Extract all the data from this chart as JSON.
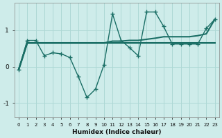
{
  "xlabel": "Humidex (Indice chaleur)",
  "background_color": "#ceecea",
  "grid_color": "#aed8d5",
  "line_color": "#1a6e65",
  "x": [
    0,
    1,
    2,
    3,
    4,
    5,
    6,
    7,
    8,
    9,
    10,
    11,
    12,
    13,
    14,
    15,
    16,
    17,
    18,
    19,
    20,
    21,
    22,
    23
  ],
  "line_jagged": [
    -0.08,
    0.72,
    0.72,
    0.3,
    0.38,
    0.35,
    0.25,
    -0.28,
    -0.85,
    -0.62,
    0.05,
    1.45,
    0.72,
    0.52,
    0.3,
    1.5,
    1.5,
    1.1,
    0.62,
    0.62,
    0.62,
    0.62,
    1.05,
    1.3
  ],
  "line_flat": [
    -0.08,
    0.65,
    0.65,
    0.65,
    0.65,
    0.65,
    0.65,
    0.65,
    0.65,
    0.65,
    0.65,
    0.65,
    0.65,
    0.65,
    0.65,
    0.65,
    0.65,
    0.65,
    0.65,
    0.65,
    0.65,
    0.65,
    0.65,
    0.65
  ],
  "line_diag": [
    -0.08,
    0.65,
    0.65,
    0.65,
    0.65,
    0.65,
    0.65,
    0.65,
    0.65,
    0.65,
    0.65,
    0.7,
    0.7,
    0.72,
    0.72,
    0.75,
    0.78,
    0.82,
    0.82,
    0.82,
    0.82,
    0.85,
    0.9,
    1.3
  ],
  "ylim": [
    -1.4,
    1.75
  ],
  "yticks": [
    -1,
    0,
    1
  ],
  "figsize": [
    3.2,
    2.0
  ],
  "dpi": 100
}
